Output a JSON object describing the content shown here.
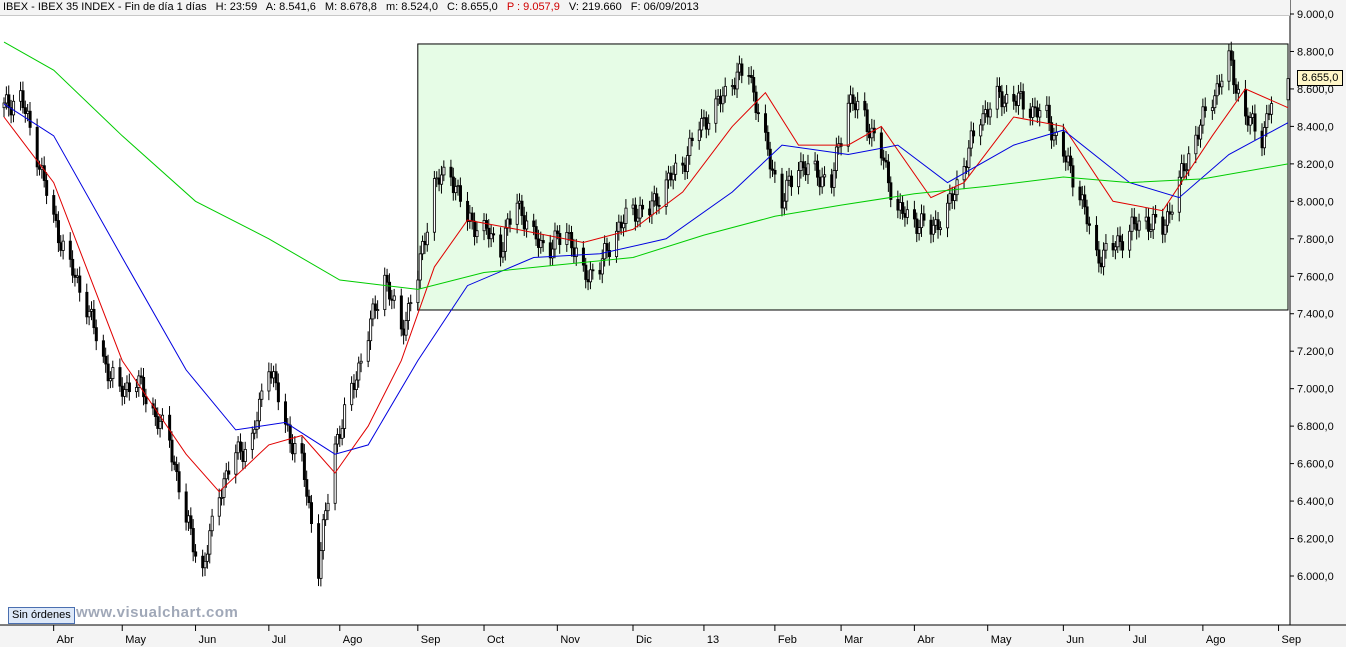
{
  "header": {
    "instrument": "IBEX - IBEX 35 INDEX - Fin de día 1 días",
    "time": "H: 23:59",
    "open": "A: 8.541,6",
    "high": "M: 8.678,8",
    "low": "m: 8.524,0",
    "close": "C: 8.655,0",
    "p_value": "P : 9.057,9",
    "volume": "V: 219.660",
    "date": "F: 06/09/2013"
  },
  "toolbar": {
    "orders_label": "Sin órdenes"
  },
  "watermark": "www.visualchart.com",
  "last_price_label": "8.655,0",
  "colors": {
    "background": "#ffffff",
    "range_box_fill": "#e6fce6",
    "ma_fast": "#e00000",
    "ma_medium": "#0000e0",
    "ma_slow": "#00cc00",
    "candle": "#000000"
  },
  "chart_data": {
    "type": "candlestick",
    "title": "IBEX 35 INDEX",
    "y_axis_side": "right",
    "ylim": [
      5900,
      9050
    ],
    "y_ticks": [
      6000,
      6200,
      6400,
      6600,
      6800,
      7000,
      7200,
      7400,
      7600,
      7800,
      8000,
      8200,
      8400,
      8600,
      8800,
      9000
    ],
    "y_tick_labels": [
      "6.000,0",
      "6.200,0",
      "6.400,0",
      "6.600,0",
      "6.800,0",
      "7.000,0",
      "7.200,0",
      "7.400,0",
      "7.600,0",
      "7.800,0",
      "8.000,0",
      "8.200,0",
      "8.400,0",
      "8.600,0",
      "8.800,0",
      "9.000,0"
    ],
    "x_range": [
      "2012-03-12",
      "2013-09-06"
    ],
    "x_ticks": [
      {
        "date": "2012-04-02",
        "label": "Abr"
      },
      {
        "date": "2012-05-01",
        "label": "May"
      },
      {
        "date": "2012-06-01",
        "label": "Jun"
      },
      {
        "date": "2012-07-02",
        "label": "Jul"
      },
      {
        "date": "2012-08-01",
        "label": "Ago"
      },
      {
        "date": "2012-09-03",
        "label": "Sep"
      },
      {
        "date": "2012-10-01",
        "label": "Oct"
      },
      {
        "date": "2012-11-01",
        "label": "Nov"
      },
      {
        "date": "2012-12-03",
        "label": "Dic"
      },
      {
        "date": "2013-01-02",
        "label": "13"
      },
      {
        "date": "2013-02-01",
        "label": "Feb"
      },
      {
        "date": "2013-03-01",
        "label": "Mar"
      },
      {
        "date": "2013-04-01",
        "label": "Abr"
      },
      {
        "date": "2013-05-02",
        "label": "May"
      },
      {
        "date": "2013-06-03",
        "label": "Jun"
      },
      {
        "date": "2013-07-01",
        "label": "Jul"
      },
      {
        "date": "2013-08-01",
        "label": "Ago"
      },
      {
        "date": "2013-09-02",
        "label": "Sep"
      }
    ],
    "range_box": {
      "x_start": "2012-09-03",
      "x_end": "2013-09-06",
      "y_low": 7420,
      "y_high": 8840
    },
    "series_close": [
      [
        "2012-03-12",
        8500
      ],
      [
        "2012-03-19",
        8560
      ],
      [
        "2012-03-26",
        8250
      ],
      [
        "2012-04-02",
        7900
      ],
      [
        "2012-04-09",
        7650
      ],
      [
        "2012-04-16",
        7450
      ],
      [
        "2012-04-23",
        7150
      ],
      [
        "2012-04-30",
        6980
      ],
      [
        "2012-05-07",
        7050
      ],
      [
        "2012-05-14",
        6880
      ],
      [
        "2012-05-21",
        6720
      ],
      [
        "2012-05-28",
        6300
      ],
      [
        "2012-06-04",
        6020
      ],
      [
        "2012-06-11",
        6450
      ],
      [
        "2012-06-18",
        6650
      ],
      [
        "2012-06-25",
        6720
      ],
      [
        "2012-07-02",
        7150
      ],
      [
        "2012-07-09",
        6800
      ],
      [
        "2012-07-16",
        6600
      ],
      [
        "2012-07-23",
        6050
      ],
      [
        "2012-07-30",
        6700
      ],
      [
        "2012-08-06",
        6980
      ],
      [
        "2012-08-13",
        7300
      ],
      [
        "2012-08-20",
        7600
      ],
      [
        "2012-08-27",
        7300
      ],
      [
        "2012-09-03",
        7600
      ],
      [
        "2012-09-10",
        8100
      ],
      [
        "2012-09-17",
        8150
      ],
      [
        "2012-09-24",
        7900
      ],
      [
        "2012-10-01",
        7850
      ],
      [
        "2012-10-08",
        7750
      ],
      [
        "2012-10-15",
        8000
      ],
      [
        "2012-10-22",
        7800
      ],
      [
        "2012-10-29",
        7750
      ],
      [
        "2012-11-05",
        7850
      ],
      [
        "2012-11-12",
        7600
      ],
      [
        "2012-11-19",
        7650
      ],
      [
        "2012-11-26",
        7850
      ],
      [
        "2012-12-03",
        7950
      ],
      [
        "2012-12-10",
        7950
      ],
      [
        "2012-12-17",
        8100
      ],
      [
        "2012-12-24",
        8200
      ],
      [
        "2012-12-31",
        8400
      ],
      [
        "2013-01-07",
        8500
      ],
      [
        "2013-01-14",
        8650
      ],
      [
        "2013-01-21",
        8700
      ],
      [
        "2013-01-28",
        8300
      ],
      [
        "2013-02-04",
        8000
      ],
      [
        "2013-02-11",
        8200
      ],
      [
        "2013-02-18",
        8150
      ],
      [
        "2013-02-25",
        8100
      ],
      [
        "2013-03-04",
        8550
      ],
      [
        "2013-03-11",
        8450
      ],
      [
        "2013-03-18",
        8250
      ],
      [
        "2013-03-25",
        7950
      ],
      [
        "2013-04-01",
        7900
      ],
      [
        "2013-04-08",
        7850
      ],
      [
        "2013-04-15",
        7950
      ],
      [
        "2013-04-22",
        8200
      ],
      [
        "2013-04-29",
        8450
      ],
      [
        "2013-05-06",
        8550
      ],
      [
        "2013-05-13",
        8550
      ],
      [
        "2013-05-20",
        8500
      ],
      [
        "2013-05-27",
        8450
      ],
      [
        "2013-06-03",
        8250
      ],
      [
        "2013-06-10",
        8050
      ],
      [
        "2013-06-17",
        7700
      ],
      [
        "2013-06-24",
        7750
      ],
      [
        "2013-07-01",
        7850
      ],
      [
        "2013-07-08",
        7900
      ],
      [
        "2013-07-15",
        7850
      ],
      [
        "2013-07-22",
        8100
      ],
      [
        "2013-07-29",
        8350
      ],
      [
        "2013-08-05",
        8550
      ],
      [
        "2013-08-12",
        8750
      ],
      [
        "2013-08-19",
        8450
      ],
      [
        "2013-08-26",
        8350
      ],
      [
        "2013-09-02",
        8655
      ]
    ],
    "series": [
      {
        "name": "",
        "key": "ma_fast",
        "values": [
          [
            "2012-03-12",
            8450
          ],
          [
            "2012-04-02",
            8100
          ],
          [
            "2012-05-01",
            7150
          ],
          [
            "2012-05-28",
            6650
          ],
          [
            "2012-06-11",
            6450
          ],
          [
            "2012-07-02",
            6700
          ],
          [
            "2012-07-16",
            6750
          ],
          [
            "2012-07-30",
            6550
          ],
          [
            "2012-08-13",
            6800
          ],
          [
            "2012-08-27",
            7150
          ],
          [
            "2012-09-10",
            7650
          ],
          [
            "2012-09-24",
            7900
          ],
          [
            "2012-10-15",
            7850
          ],
          [
            "2012-11-12",
            7780
          ],
          [
            "2012-12-03",
            7850
          ],
          [
            "2012-12-24",
            8050
          ],
          [
            "2013-01-14",
            8400
          ],
          [
            "2013-01-28",
            8580
          ],
          [
            "2013-02-11",
            8300
          ],
          [
            "2013-03-04",
            8300
          ],
          [
            "2013-03-18",
            8400
          ],
          [
            "2013-04-08",
            8020
          ],
          [
            "2013-04-22",
            8100
          ],
          [
            "2013-05-13",
            8450
          ],
          [
            "2013-06-03",
            8400
          ],
          [
            "2013-06-24",
            8000
          ],
          [
            "2013-07-15",
            7950
          ],
          [
            "2013-08-05",
            8350
          ],
          [
            "2013-08-19",
            8600
          ],
          [
            "2013-09-06",
            8500
          ]
        ]
      },
      {
        "name": "",
        "key": "ma_medium",
        "values": [
          [
            "2012-03-12",
            8520
          ],
          [
            "2012-04-02",
            8350
          ],
          [
            "2012-05-01",
            7700
          ],
          [
            "2012-05-28",
            7100
          ],
          [
            "2012-06-18",
            6780
          ],
          [
            "2012-07-09",
            6820
          ],
          [
            "2012-07-30",
            6650
          ],
          [
            "2012-08-13",
            6700
          ],
          [
            "2012-09-03",
            7150
          ],
          [
            "2012-09-24",
            7550
          ],
          [
            "2012-10-22",
            7700
          ],
          [
            "2012-11-19",
            7720
          ],
          [
            "2012-12-17",
            7800
          ],
          [
            "2013-01-14",
            8050
          ],
          [
            "2013-02-04",
            8300
          ],
          [
            "2013-03-04",
            8250
          ],
          [
            "2013-03-25",
            8300
          ],
          [
            "2013-04-15",
            8100
          ],
          [
            "2013-05-13",
            8300
          ],
          [
            "2013-06-03",
            8380
          ],
          [
            "2013-07-01",
            8100
          ],
          [
            "2013-07-22",
            8020
          ],
          [
            "2013-08-12",
            8250
          ],
          [
            "2013-09-06",
            8420
          ]
        ]
      },
      {
        "name": "",
        "key": "ma_slow",
        "values": [
          [
            "2012-03-12",
            8850
          ],
          [
            "2012-04-02",
            8700
          ],
          [
            "2012-05-01",
            8350
          ],
          [
            "2012-06-01",
            8000
          ],
          [
            "2012-07-02",
            7800
          ],
          [
            "2012-08-01",
            7580
          ],
          [
            "2012-09-03",
            7530
          ],
          [
            "2012-10-01",
            7620
          ],
          [
            "2012-11-01",
            7660
          ],
          [
            "2012-12-03",
            7700
          ],
          [
            "2013-01-02",
            7820
          ],
          [
            "2013-02-01",
            7920
          ],
          [
            "2013-03-01",
            7980
          ],
          [
            "2013-04-01",
            8040
          ],
          [
            "2013-05-02",
            8080
          ],
          [
            "2013-06-03",
            8130
          ],
          [
            "2013-07-01",
            8100
          ],
          [
            "2013-08-01",
            8120
          ],
          [
            "2013-09-06",
            8200
          ]
        ]
      }
    ]
  }
}
